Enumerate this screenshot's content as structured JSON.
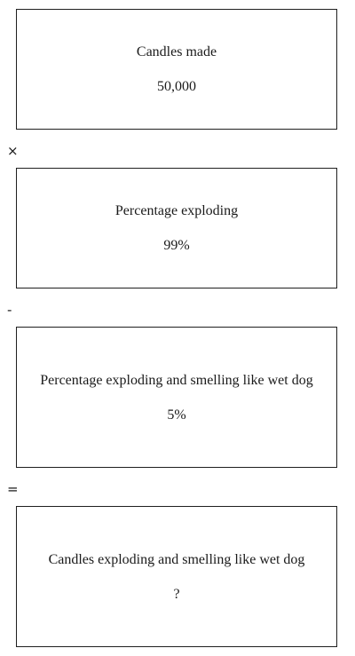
{
  "cards": [
    {
      "label": "Candles made",
      "value": "50,000"
    },
    {
      "label": "Percentage exploding",
      "value": "99%"
    },
    {
      "label": "Percentage exploding and smelling like wet dog",
      "value": "5%"
    },
    {
      "label": "Candles exploding and smelling like wet dog",
      "value": "?"
    }
  ],
  "operators": [
    "×",
    "-",
    "="
  ]
}
